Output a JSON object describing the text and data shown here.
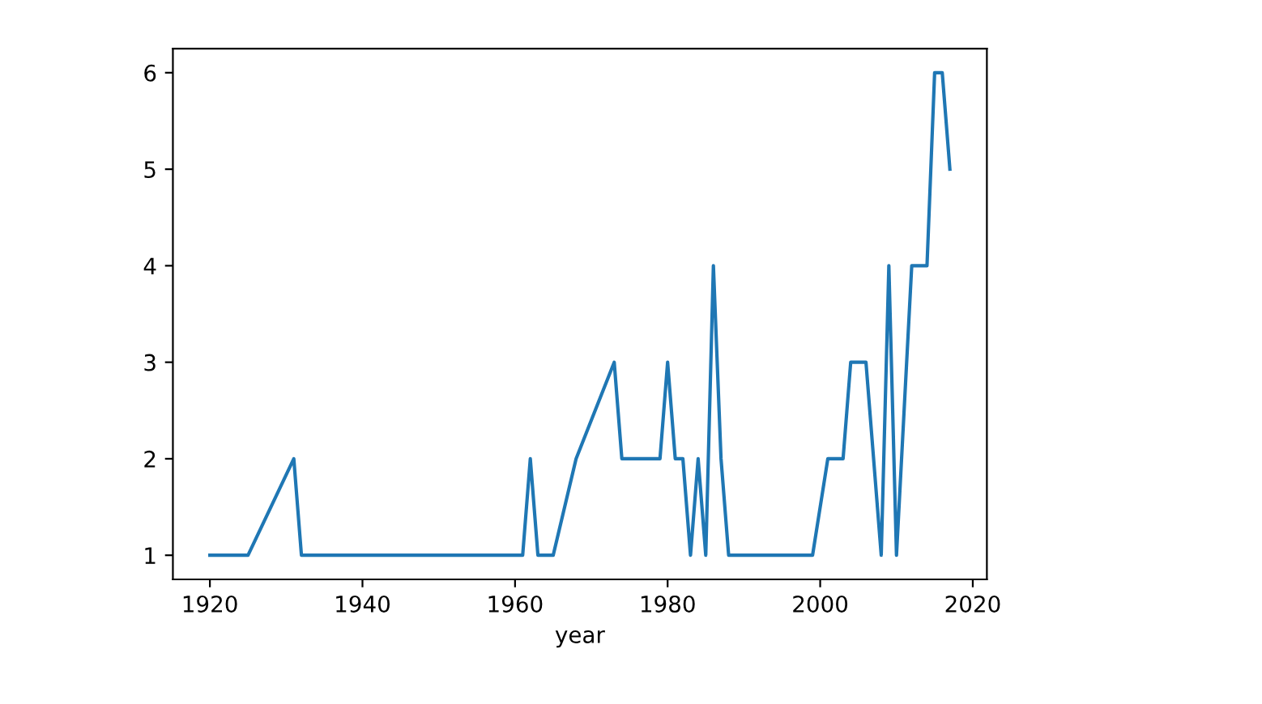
{
  "chart_data": {
    "type": "line",
    "xlabel": "year",
    "x": [
      1920,
      1925,
      1931,
      1932,
      1961,
      1962,
      1963,
      1965,
      1968,
      1973,
      1974,
      1979,
      1980,
      1981,
      1982,
      1983,
      1984,
      1985,
      1986,
      1987,
      1988,
      1999,
      2001,
      2003,
      2004,
      2006,
      2008,
      2009,
      2010,
      2012,
      2014,
      2015,
      2016,
      2017
    ],
    "series": [
      {
        "color": "#1f77b4",
        "values": [
          1,
          1,
          2,
          1,
          1,
          2,
          1,
          1,
          2,
          3,
          2,
          2,
          3,
          2,
          2,
          1,
          2,
          1,
          4,
          2,
          1,
          1,
          2,
          2,
          3,
          3,
          1,
          4,
          1,
          4,
          4,
          6,
          6,
          5
        ]
      }
    ],
    "xlim": [
      1915.15,
      2021.85
    ],
    "ylim": [
      0.75,
      6.25
    ],
    "xticks": [
      1920,
      1940,
      1960,
      1980,
      2000,
      2020
    ],
    "yticks": [
      1,
      2,
      3,
      4,
      5,
      6
    ],
    "grid": false,
    "legend": false
  }
}
